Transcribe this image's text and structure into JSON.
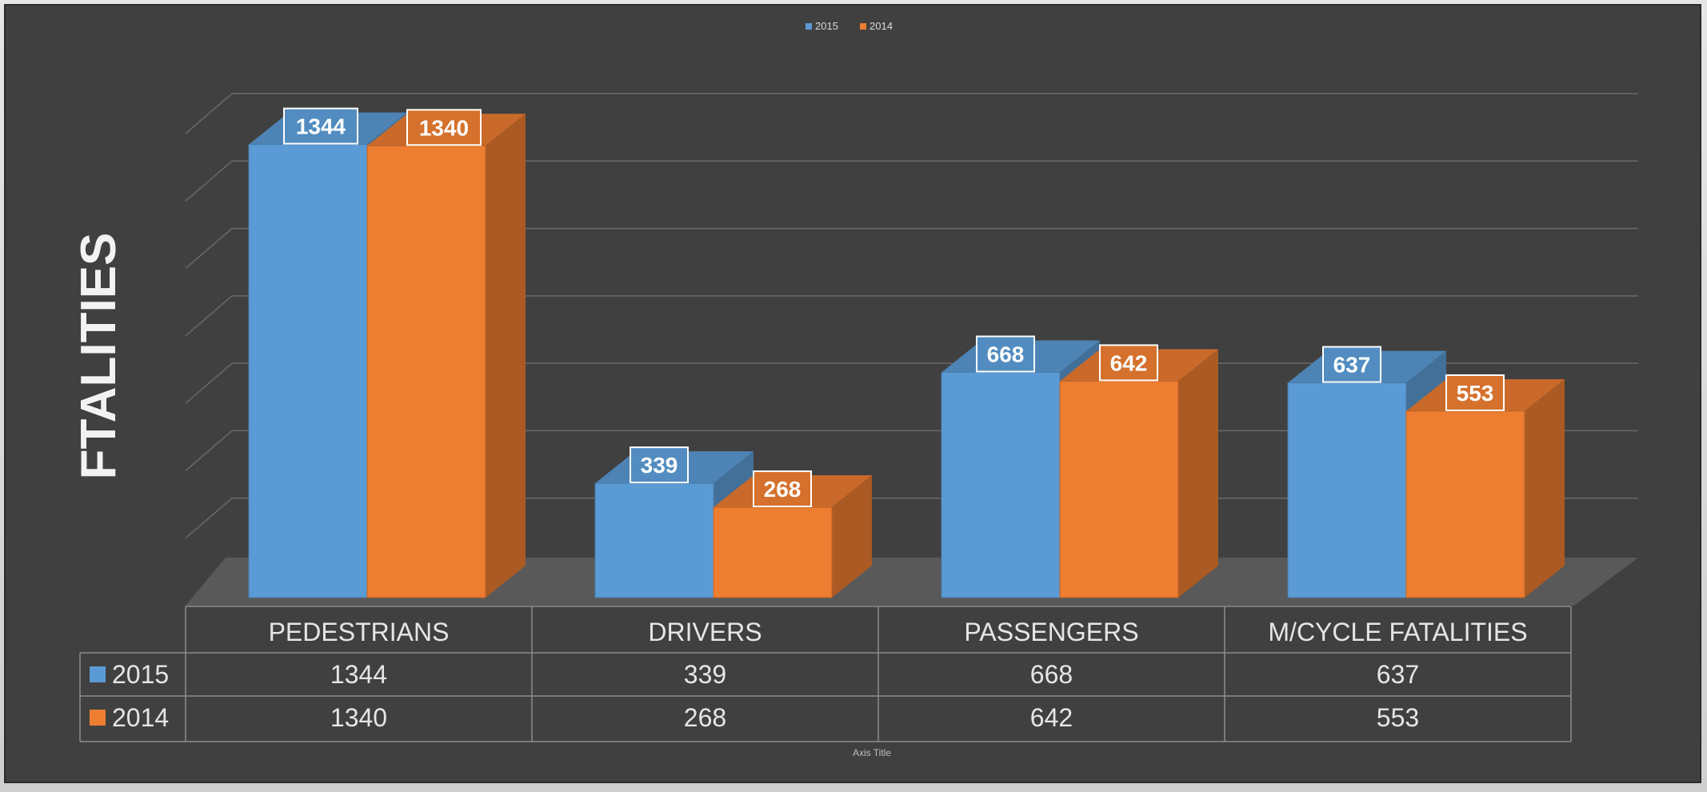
{
  "chart_data": {
    "type": "bar",
    "ylabel": "FTALITIES",
    "xlabel": "Axis Title",
    "categories": [
      "PEDESTRIANS",
      "DRIVERS",
      "PASSENGERS",
      "M/CYCLE FATALITIES"
    ],
    "series": [
      {
        "name": "2015",
        "values": [
          1344,
          339,
          668,
          637
        ],
        "color": "#5b9bd5"
      },
      {
        "name": "2014",
        "values": [
          1340,
          268,
          642,
          553
        ],
        "color": "#ed7d31"
      }
    ],
    "ylim": [
      0,
      1400
    ],
    "grid": true,
    "legend": "top-center",
    "data_table": true,
    "style": "3d-clustered-column",
    "background": "#404040"
  }
}
